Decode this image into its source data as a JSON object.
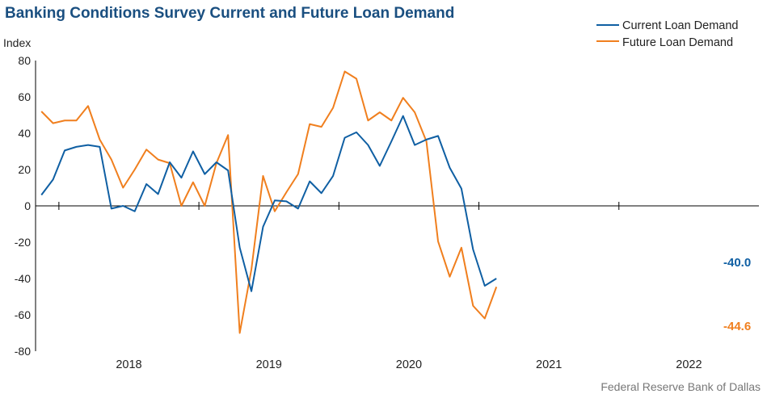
{
  "title": "Banking Conditions Survey Current and Future Loan Demand",
  "source": "Federal Reserve Bank of Dallas",
  "colors": {
    "title": "#1a4f80",
    "current": "#0f5fa3",
    "future": "#f07f1e",
    "axis": "#000000",
    "tick": "#222222",
    "source": "#777777"
  },
  "chart_data": {
    "type": "line",
    "ylabel": "Index",
    "ylim": [
      -80,
      80
    ],
    "yticks": [
      80,
      60,
      40,
      20,
      0,
      -20,
      -40,
      -60,
      -80
    ],
    "year_labels": [
      "2018",
      "2019",
      "2020",
      "2021",
      "2022"
    ],
    "x": [
      "2017-Q3",
      "2017-Q4",
      "2018-Jan",
      "2018-Feb",
      "2018-Mar",
      "2018-Apr",
      "2018-May",
      "2018-Jun",
      "2018-Jul",
      "2018-Aug",
      "2018-Sep",
      "2018-Oct",
      "2018-Nov",
      "2018-Dec",
      "2019-Jan",
      "2019-Feb",
      "2019-Mar",
      "2019-Apr",
      "2019-May",
      "2019-Jun",
      "2019-Jul",
      "2019-Aug",
      "2019-Sep",
      "2019-Oct",
      "2019-Nov",
      "2019-Dec",
      "2020-Jan",
      "2020-Feb",
      "2020-Mar",
      "2020-Apr",
      "2020-May",
      "2020-Jun",
      "2020-Jul",
      "2020-Aug",
      "2020-Sep",
      "2020-Oct",
      "2020-Nov",
      "2020-Dec",
      "2021-Jan",
      "2021-Feb",
      "2021-Mar",
      "2021-Apr",
      "2021-May",
      "2021-Jun",
      "2021-Jul",
      "2021-Aug",
      "2021-Sep",
      "2021-Oct",
      "2021-Nov",
      "2021-Dec",
      "2022-Jan",
      "2022-Feb",
      "2022-Mar",
      "2022-Apr",
      "2022-May",
      "2022-Jun",
      "2022-Jul",
      "2022-Aug",
      "2022-Sep",
      "2022-Oct",
      "2022-Nov",
      "2022-Dec"
    ],
    "series": [
      {
        "name": "Current Loan Demand",
        "color": "#0f5fa3",
        "end_label": "-40.0",
        "points": [
          [
            0,
            6
          ],
          [
            1,
            14.5
          ],
          [
            2,
            30.5
          ],
          [
            3,
            32.5
          ],
          [
            4,
            33.5
          ],
          [
            5,
            32.5
          ],
          [
            6,
            -1.5
          ],
          [
            7,
            0
          ],
          [
            8,
            -3
          ],
          [
            9,
            12
          ],
          [
            10,
            6.5
          ],
          [
            11,
            24
          ],
          [
            12,
            15.5
          ],
          [
            13,
            30
          ],
          [
            14,
            17.5
          ],
          [
            15,
            24
          ],
          [
            16,
            19.5
          ],
          [
            17,
            -23
          ],
          [
            18,
            -47
          ],
          [
            19,
            -11.5
          ],
          [
            20,
            3
          ],
          [
            21,
            2.5
          ],
          [
            22,
            -1.5
          ],
          [
            23,
            13.5
          ],
          [
            24,
            7
          ],
          [
            25,
            16.5
          ],
          [
            26,
            37.5
          ],
          [
            27,
            40.5
          ],
          [
            28,
            33.5
          ],
          [
            29,
            22
          ],
          [
            30,
            35.5
          ],
          [
            31,
            49.5
          ],
          [
            32,
            33.5
          ],
          [
            33,
            36.5
          ],
          [
            34,
            38.5
          ],
          [
            35,
            21
          ],
          [
            36,
            9.5
          ],
          [
            37,
            -24
          ],
          [
            38,
            -44
          ],
          [
            39,
            -40
          ]
        ]
      },
      {
        "name": "Future Loan Demand",
        "color": "#f07f1e",
        "end_label": "-44.6",
        "points": [
          [
            0,
            52
          ],
          [
            1,
            45.5
          ],
          [
            2,
            47
          ],
          [
            3,
            47
          ],
          [
            4,
            55
          ],
          [
            5,
            36.5
          ],
          [
            6,
            25.5
          ],
          [
            7,
            10
          ],
          [
            8,
            20
          ],
          [
            9,
            31
          ],
          [
            10,
            25.5
          ],
          [
            11,
            23.5
          ],
          [
            12,
            0
          ],
          [
            13,
            13
          ],
          [
            14,
            0
          ],
          [
            15,
            23.5
          ],
          [
            16,
            39
          ],
          [
            17,
            -70
          ],
          [
            18,
            -35
          ],
          [
            19,
            16.5
          ],
          [
            20,
            -3
          ],
          [
            21,
            7.5
          ],
          [
            22,
            17.5
          ],
          [
            23,
            45
          ],
          [
            24,
            43.5
          ],
          [
            25,
            54
          ],
          [
            26,
            74
          ],
          [
            27,
            70
          ],
          [
            28,
            47
          ],
          [
            29,
            51.5
          ],
          [
            30,
            47
          ],
          [
            31,
            59.5
          ],
          [
            32,
            51.5
          ],
          [
            33,
            35.5
          ],
          [
            34,
            -19.5
          ],
          [
            35,
            -39
          ],
          [
            36,
            -23
          ],
          [
            37,
            -55
          ],
          [
            38,
            -62
          ],
          [
            39,
            -44.6
          ]
        ]
      }
    ],
    "legend": "top-right"
  }
}
